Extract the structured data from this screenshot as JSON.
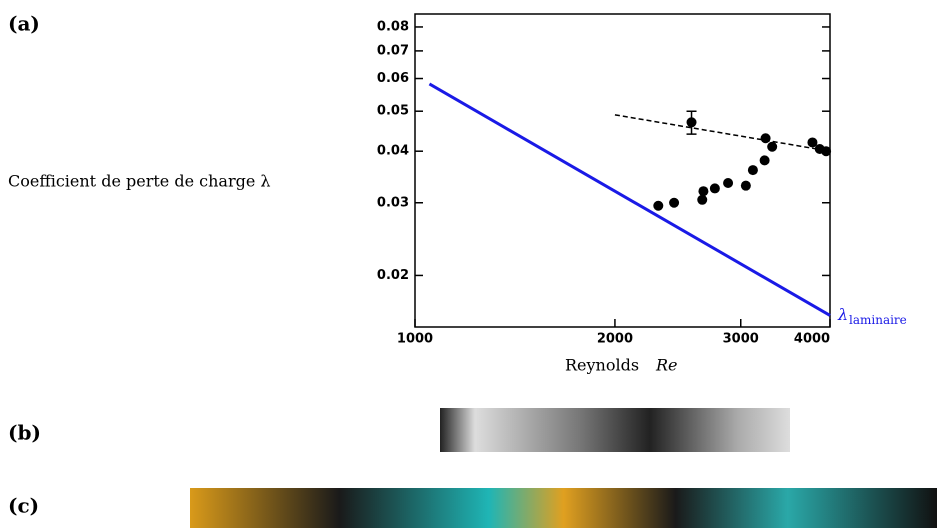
{
  "chart_data": {
    "type": "scatter",
    "panel_a": "(a)",
    "panel_b": "(b)",
    "panel_c": "(c)",
    "ylabel": "Coefficient de perte de charge λ",
    "xlabel": "Reynolds",
    "xlabel_italic": "Re",
    "log_x": true,
    "log_y": true,
    "xlim": [
      1050,
      4000
    ],
    "ylim": [
      0.015,
      0.086
    ],
    "xticks": [
      1000,
      2000,
      3000,
      4000
    ],
    "yticks": [
      0.02,
      0.03,
      0.04,
      0.05,
      0.06,
      0.07,
      0.08
    ],
    "laminar": {
      "color": "#1a1ae6",
      "label": "λ",
      "label_sub": "laminaire",
      "x": [
        1100,
        4000
      ],
      "y": [
        0.0582,
        0.016
      ]
    },
    "fit": {
      "color": "#000000",
      "x": [
        2000,
        4000
      ],
      "y": [
        0.049,
        0.04
      ]
    },
    "points": {
      "color": "#000000",
      "x": [
        2300,
        2420,
        2650,
        2660,
        2760,
        2880,
        3050,
        3120,
        3240,
        3250,
        3320,
        3780,
        3870,
        3950
      ],
      "y": [
        0.0295,
        0.03,
        0.0305,
        0.032,
        0.0325,
        0.0335,
        0.033,
        0.036,
        0.038,
        0.043,
        0.041,
        0.042,
        0.0405,
        0.04
      ]
    },
    "error_point": {
      "x": 2560,
      "y": 0.047,
      "err": 0.003
    }
  }
}
